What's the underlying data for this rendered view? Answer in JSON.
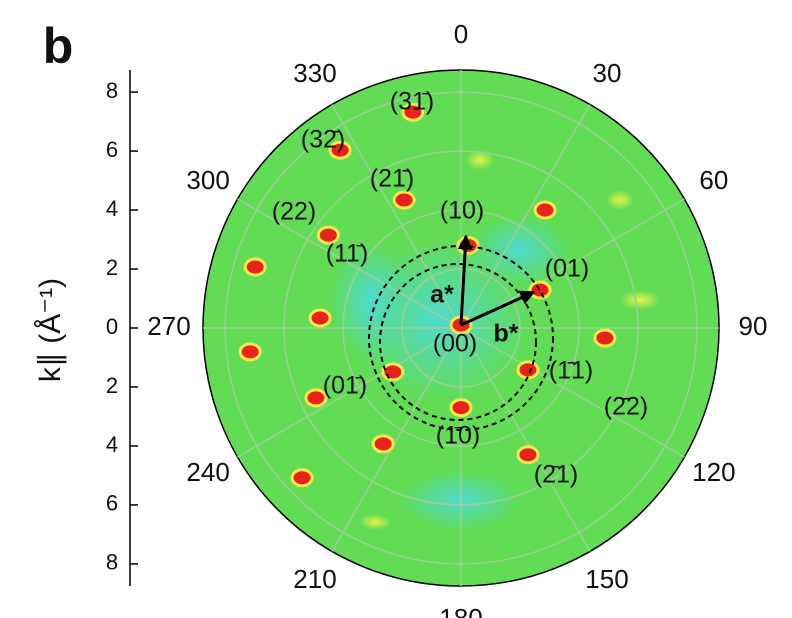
{
  "chart_data": {
    "type": "polar",
    "panel_label": "b",
    "ylabel": "k∥ (Å⁻¹)",
    "ylim": [
      -8.75,
      8.75
    ],
    "yticks": [
      {
        "value": -8,
        "label": "8"
      },
      {
        "value": -6,
        "label": "6"
      },
      {
        "value": -4,
        "label": "4"
      },
      {
        "value": -2,
        "label": "2"
      },
      0,
      2,
      4,
      6,
      8
    ],
    "rticks": [
      2,
      4,
      6,
      8
    ],
    "thetaticks": [
      0,
      30,
      60,
      90,
      120,
      150,
      180,
      210,
      240,
      270,
      300,
      330
    ],
    "color": "#e8231c",
    "x": [
      0.24,
      2.68,
      0,
      -2.31,
      0,
      2.27,
      -1.93,
      -1.63,
      -4.1,
      -4.5,
      -4.78,
      -6.98,
      -7.15,
      -4.92,
      -2.64,
      -5.39,
      2.85,
      2.27,
      4.88
    ],
    "values": [
      2.8,
      1.29,
      0.1,
      -1.49,
      -2.7,
      -1.42,
      4.34,
      7.32,
      6.03,
      3.15,
      0.34,
      2.07,
      -0.81,
      -2.37,
      -3.93,
      -5.08,
      4.0,
      -4.3,
      -0.34
    ],
    "annotations": [
      "(10)",
      "(01)",
      "(00)",
      "(01̄)",
      "(1̄0)",
      "(1̄1)",
      "(2̄2)",
      "(2̄1)",
      "(21̄)",
      "(31̄)",
      "(32̄)",
      "(22)",
      "(11̄)",
      "a*",
      "b*"
    ]
  }
}
